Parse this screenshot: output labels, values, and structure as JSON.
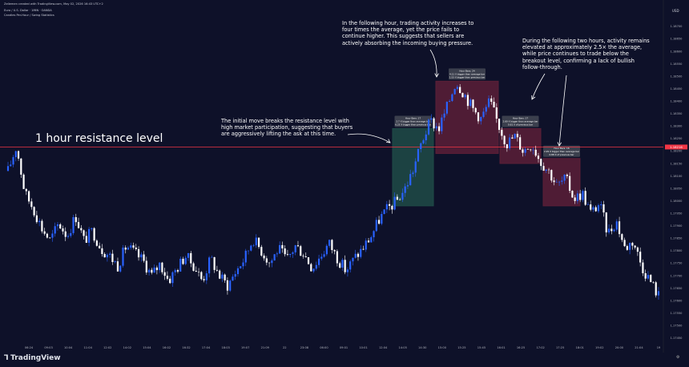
{
  "header": {
    "creator": "Zeliemen created with TradingView.com, May 02, 2026 16:43 UTC+2",
    "symbol": "Euro / U.S. Dollar · 1MIN · OANDA",
    "indicator": "Candles Per-Hour / Swing Statistics"
  },
  "footer": {
    "logo_text": "TradingView",
    "scale_icon": "gear-icon"
  },
  "price_axis": {
    "currency": "USD",
    "labels": [
      "1.18700",
      "1.18650",
      "1.18600",
      "1.18550",
      "1.18500",
      "1.18450",
      "1.18400",
      "1.18350",
      "1.18300",
      "1.18250",
      "1.18200",
      "1.18150",
      "1.18100",
      "1.18050",
      "1.18000",
      "1.17950",
      "1.17900",
      "1.17850",
      "1.17800",
      "1.17750",
      "1.17700",
      "1.17650",
      "1.17600",
      "1.17550",
      "1.17500",
      "1.17450"
    ],
    "current_price_label": "1.18216",
    "current_price_color": "#f23645"
  },
  "time_axis": {
    "labels": [
      "06:24",
      "09:03",
      "10:04",
      "11:04",
      "12:02",
      "14:02",
      "15:04",
      "16:02",
      "16:32",
      "17:04",
      "18:03",
      "19:07",
      "21:09",
      "22",
      "23:08",
      "06:00",
      "09:01",
      "10:01",
      "12:04",
      "14:05",
      "14:30",
      "15:00",
      "15:25",
      "15:45",
      "16:01",
      "16:25",
      "17:02",
      "17:25",
      "18:01",
      "19:02",
      "20:00",
      "21:04",
      "19"
    ]
  },
  "chart_data": {
    "type": "candlestick",
    "title": "",
    "ylim": [
      1.1742,
      1.1875
    ],
    "resistance": {
      "label": "1 hour resistance level",
      "price": 1.18216,
      "color": "#f23645"
    },
    "annotations": [
      {
        "id": "breakout",
        "text_lines": [
          "The initial move breaks the resistance level with",
          "high market participation, suggesting that buyers",
          "are aggressively lifting the ask at this time."
        ]
      },
      {
        "id": "absorption",
        "text_lines": [
          "In the following hour, trading activity increases to",
          "four times the average, yet the price fails to",
          "continue higher. This suggests that sellers are",
          "actively absorbing the incoming buying pressure."
        ]
      },
      {
        "id": "follow",
        "text_lines": [
          "During the following two hours, activity remains",
          "elevated at approximately 2.5× the average,",
          "while price continues to trade below the",
          "breakout level, confirming a lack of bullish",
          "follow-through."
        ]
      }
    ],
    "hour_boxes": [
      {
        "id": "h1",
        "color": "#1f4b47",
        "price_high": 1.1829,
        "price_low": 1.1798,
        "stats": [
          "Hour Bars: 17",
          "2.7 X bigger than average bar",
          "6.23 X bigger than previous bar"
        ]
      },
      {
        "id": "h2",
        "color": "#5b1f37",
        "price_high": 1.1848,
        "price_low": 1.1819,
        "stats": [
          "Hour Bars: 24",
          "4.11 X bigger than average bar",
          "1.53 X bigger than previous bar"
        ]
      },
      {
        "id": "h3",
        "color": "#5b1f37",
        "price_high": 1.1829,
        "price_low": 1.1815,
        "stats": [
          "Hour Bars: 17",
          "2.69 X bigger than average bar",
          "0.61 X of previous bar"
        ]
      },
      {
        "id": "h4",
        "color": "#5b1f37",
        "price_high": 1.1817,
        "price_low": 1.1798,
        "stats": [
          "Hour Bars: 16",
          "2.29 X bigger than average bar",
          "0.88 X of previous bar"
        ]
      }
    ],
    "bull_color": "#2962ff",
    "bear_color": "#ffffff",
    "path_prices": [
      1.1812,
      1.1822,
      1.1803,
      1.1797,
      1.1789,
      1.1784,
      1.1791,
      1.1786,
      1.1794,
      1.1784,
      1.1788,
      1.1781,
      1.1778,
      1.1774,
      1.1782,
      1.1779,
      1.1776,
      1.177,
      1.1775,
      1.1768,
      1.1773,
      1.1778,
      1.1774,
      1.1768,
      1.1777,
      1.177,
      1.1766,
      1.1772,
      1.1777,
      1.1785,
      1.178,
      1.1775,
      1.1781,
      1.1776,
      1.1782,
      1.1779,
      1.1773,
      1.1778,
      1.1783,
      1.1777,
      1.1772,
      1.1777,
      1.1781,
      1.1786,
      1.1793,
      1.1797,
      1.18,
      1.1805,
      1.1813,
      1.1824,
      1.1832,
      1.1829,
      1.1838,
      1.1848,
      1.1843,
      1.1837,
      1.1833,
      1.184,
      1.1831,
      1.1823,
      1.1826,
      1.182,
      1.1823,
      1.1816,
      1.1812,
      1.1806,
      1.1809,
      1.1801,
      1.1803,
      1.1795,
      1.1799,
      1.1787,
      1.1792,
      1.1781,
      1.1784,
      1.1774,
      1.1768,
      1.1762
    ]
  }
}
